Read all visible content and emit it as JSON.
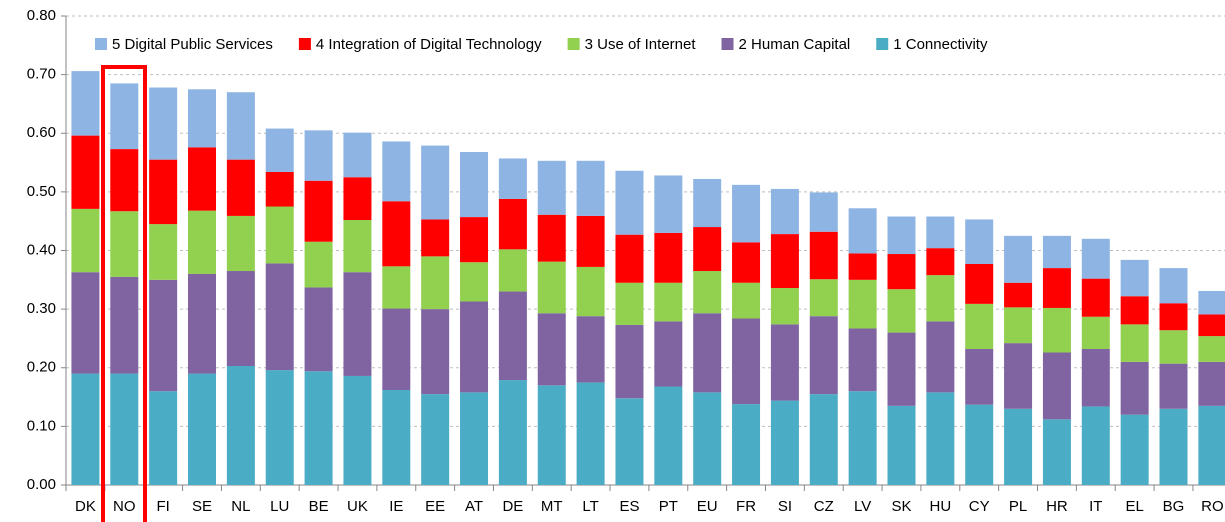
{
  "chart_data": {
    "type": "stacked_bar",
    "categories": [
      "DK",
      "NO",
      "FI",
      "SE",
      "NL",
      "LU",
      "BE",
      "UK",
      "IE",
      "EE",
      "AT",
      "DE",
      "MT",
      "LT",
      "ES",
      "PT",
      "EU",
      "FR",
      "SI",
      "CZ",
      "LV",
      "SK",
      "HU",
      "CY",
      "PL",
      "HR",
      "IT",
      "EL",
      "BG",
      "RO"
    ],
    "series": [
      {
        "name": "1 Connectivity",
        "color": "#4bacc6",
        "values": [
          0.19,
          0.19,
          0.16,
          0.19,
          0.203,
          0.196,
          0.194,
          0.186,
          0.162,
          0.155,
          0.158,
          0.179,
          0.17,
          0.175,
          0.148,
          0.168,
          0.158,
          0.138,
          0.144,
          0.155,
          0.16,
          0.135,
          0.158,
          0.137,
          0.13,
          0.112,
          0.134,
          0.12,
          0.13,
          0.135
        ]
      },
      {
        "name": "2 Human Capital",
        "color": "#8064a2",
        "values": [
          0.173,
          0.165,
          0.19,
          0.17,
          0.162,
          0.182,
          0.143,
          0.177,
          0.139,
          0.145,
          0.155,
          0.151,
          0.123,
          0.113,
          0.125,
          0.111,
          0.135,
          0.146,
          0.13,
          0.133,
          0.107,
          0.125,
          0.121,
          0.095,
          0.112,
          0.114,
          0.098,
          0.09,
          0.077,
          0.075
        ]
      },
      {
        "name": "3 Use of Internet",
        "color": "#92d050",
        "values": [
          0.108,
          0.112,
          0.095,
          0.108,
          0.094,
          0.097,
          0.078,
          0.089,
          0.072,
          0.09,
          0.067,
          0.072,
          0.088,
          0.084,
          0.072,
          0.066,
          0.072,
          0.061,
          0.062,
          0.063,
          0.083,
          0.074,
          0.079,
          0.077,
          0.061,
          0.076,
          0.055,
          0.064,
          0.057,
          0.044
        ]
      },
      {
        "name": "4 Integration of Digital Technology",
        "color": "#ff0000",
        "values": [
          0.125,
          0.106,
          0.11,
          0.108,
          0.096,
          0.059,
          0.104,
          0.073,
          0.111,
          0.063,
          0.077,
          0.086,
          0.08,
          0.087,
          0.082,
          0.085,
          0.075,
          0.069,
          0.092,
          0.081,
          0.045,
          0.06,
          0.046,
          0.068,
          0.042,
          0.068,
          0.065,
          0.048,
          0.046,
          0.037
        ]
      },
      {
        "name": "5 Digital Public Services",
        "color": "#8eb4e3",
        "values": [
          0.11,
          0.112,
          0.123,
          0.099,
          0.115,
          0.074,
          0.086,
          0.076,
          0.102,
          0.126,
          0.111,
          0.069,
          0.092,
          0.094,
          0.109,
          0.098,
          0.082,
          0.098,
          0.077,
          0.067,
          0.077,
          0.064,
          0.054,
          0.076,
          0.08,
          0.055,
          0.068,
          0.062,
          0.06,
          0.04
        ]
      }
    ],
    "ylim": [
      0,
      0.8
    ],
    "yticks": [
      {
        "value": 0,
        "label": "0.00"
      },
      {
        "value": 0.1,
        "label": "0.10"
      },
      {
        "value": 0.2,
        "label": "0.20"
      },
      {
        "value": 0.3,
        "label": "0.30"
      },
      {
        "value": 0.4,
        "label": "0.40"
      },
      {
        "value": 0.5,
        "label": "0.50"
      },
      {
        "value": 0.6,
        "label": "0.60"
      },
      {
        "value": 0.7,
        "label": "0.70"
      },
      {
        "value": 0.8,
        "label": "0.80"
      }
    ],
    "grid": true
  }
}
